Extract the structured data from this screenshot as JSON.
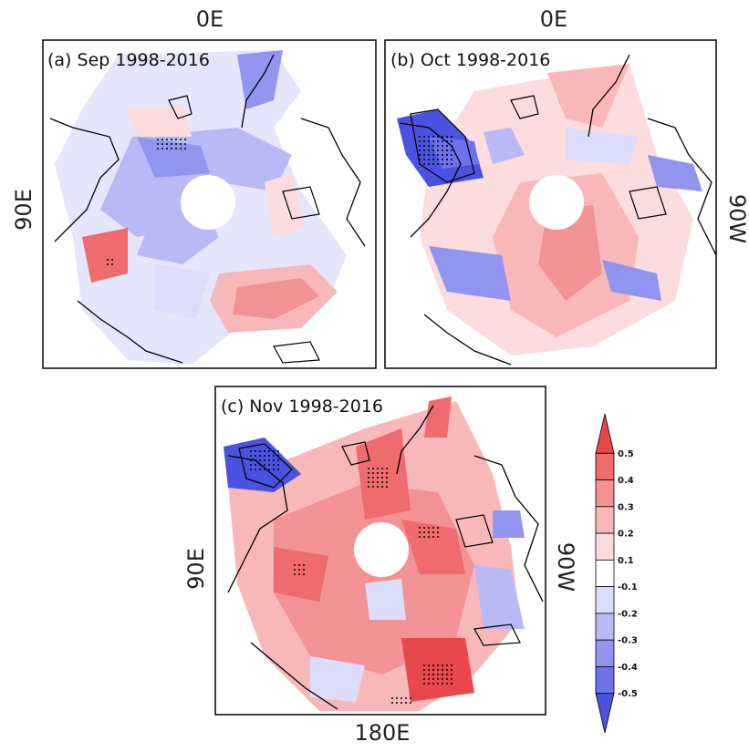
{
  "figure": {
    "colors": {
      "positive": "#e8474c",
      "negative": "#4b52e0",
      "coast": "#000000",
      "frame": "#000000"
    },
    "panels": [
      {
        "id": "a",
        "title": "(a) Sep 1998-2016",
        "top_label": "0E",
        "left_label": "90E",
        "right_label": "",
        "bottom_label": ""
      },
      {
        "id": "b",
        "title": "(b) Oct 1998-2016",
        "top_label": "0E",
        "left_label": "",
        "right_label": "90W",
        "bottom_label": ""
      },
      {
        "id": "c",
        "title": "(c) Nov 1998-2016",
        "top_label": "",
        "left_label": "90E",
        "right_label": "90W",
        "bottom_label": "180E"
      }
    ],
    "colorbar": {
      "ticks": [
        "0.5",
        "0.4",
        "0.3",
        "0.2",
        "0.1",
        "-0.1",
        "-0.2",
        "-0.3",
        "-0.4",
        "-0.5"
      ],
      "colors": [
        "#e8474c",
        "#ee6b6e",
        "#f39294",
        "#f8b8b9",
        "#fcdcdc",
        "#ffffff",
        "#dcdcfb",
        "#b8baf6",
        "#9195f0",
        "#6d72ea",
        "#4b52e0"
      ]
    }
  }
}
